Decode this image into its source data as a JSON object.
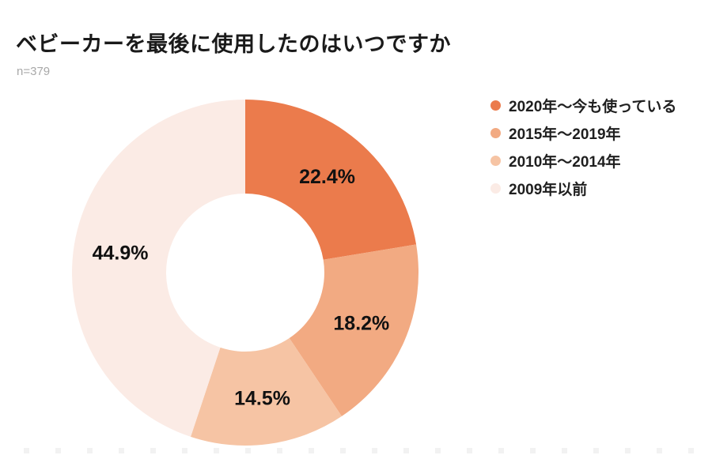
{
  "header": {
    "title": "ベビーカーを最後に使用したのはいつですか",
    "sample_size": "n=379"
  },
  "chart_data": {
    "type": "pie",
    "subtype": "donut",
    "title": "ベビーカーを最後に使用したのはいつですか",
    "sample_label": "n=379",
    "direction": "clockwise",
    "rotation_start_deg": 0,
    "inner_radius_ratio": 0.46,
    "legend_position": "right",
    "categories": [
      "2020年〜今も使っている",
      "2015年〜2019年",
      "2010年〜2014年",
      "2009年以前"
    ],
    "values": [
      22.4,
      18.2,
      14.5,
      44.9
    ],
    "labels": [
      "22.4%",
      "18.2%",
      "14.5%",
      "44.9%"
    ],
    "colors": [
      "#EB7B4C",
      "#F2AA82",
      "#F6C4A4",
      "#FBEBE5"
    ],
    "label_color": "#111111"
  }
}
